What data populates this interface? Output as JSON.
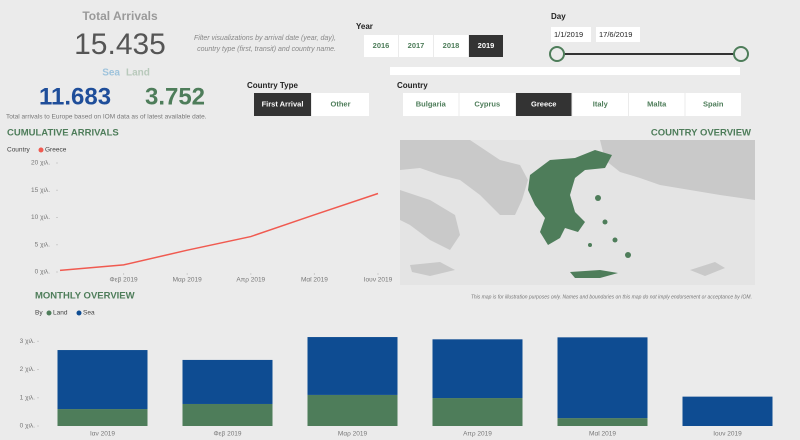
{
  "kpi": {
    "title": "Total Arrivals",
    "total": "15.435",
    "sea_label": "Sea",
    "land_label": "Land",
    "sea": "11.683",
    "land": "3.752",
    "note": "Total arrivals to Europe based on IOM data as of latest available date."
  },
  "filter_note": [
    "Filter visualizations by arrival date (year, day),",
    "country type (first, transit) and country name."
  ],
  "year": {
    "label": "Year",
    "options": [
      "2016",
      "2017",
      "2018",
      "2019"
    ],
    "selected": 3
  },
  "day": {
    "label": "Day",
    "from": "1/1/2019",
    "to": "17/6/2019"
  },
  "country_type": {
    "label": "Country Type",
    "options": [
      "First Arrival",
      "Other"
    ],
    "selected": 0
  },
  "country": {
    "label": "Country",
    "options": [
      "Bulgaria",
      "Cyprus",
      "Greece",
      "Italy",
      "Malta",
      "Spain"
    ],
    "selected": 2
  },
  "map": {
    "title": "COUNTRY OVERVIEW",
    "note": "This map is for illustration purposes only. Names and boundaries on this map do not imply endorsement or acceptance by IOM."
  },
  "chart_data": [
    {
      "type": "line",
      "title": "CUMULATIVE ARRIVALS",
      "legend_title": "Country",
      "x": [
        "2019-01",
        "2019-02",
        "2019-03",
        "2019-04",
        "2019-05",
        "2019-06"
      ],
      "series": [
        {
          "name": "Greece",
          "color": "#f05a50",
          "values": [
            300,
            1300,
            4000,
            6500,
            10500,
            14400
          ]
        }
      ],
      "xlim": [
        "2019-01",
        "2019-06"
      ],
      "xticks": [
        {
          "value": "2019-02",
          "label": "Φεβ 2019"
        },
        {
          "value": "2019-03",
          "label": "Μαρ 2019"
        },
        {
          "value": "2019-04",
          "label": "Απρ 2019"
        },
        {
          "value": "2019-05",
          "label": "Μαϊ 2019"
        },
        {
          "value": "2019-06",
          "label": "Ιουν 2019"
        }
      ],
      "ylim": [
        0,
        20000
      ],
      "yticks": [
        {
          "value": 0,
          "label": "0 χιλ."
        },
        {
          "value": 5000,
          "label": "5 χιλ."
        },
        {
          "value": 10000,
          "label": "10 χιλ."
        },
        {
          "value": 15000,
          "label": "15 χιλ."
        },
        {
          "value": 20000,
          "label": "20 χιλ."
        }
      ]
    },
    {
      "type": "stacked_bar",
      "title": "MONTHLY OVERVIEW",
      "legend_title": "By",
      "categories": [
        "Ιαν 2019",
        "Φεβ 2019",
        "Μαρ 2019",
        "Απρ 2019",
        "Μαϊ 2019",
        "Ιουν 2019"
      ],
      "series": [
        {
          "name": "Land",
          "color": "#4e7d5a",
          "values": [
            600,
            780,
            1100,
            990,
            280,
            0
          ]
        },
        {
          "name": "Sea",
          "color": "#0e4c92",
          "values": [
            2090,
            1560,
            2050,
            2080,
            2860,
            1040
          ]
        }
      ],
      "ylim": [
        0,
        3400
      ],
      "yticks": [
        {
          "value": 0,
          "label": "0 χιλ."
        },
        {
          "value": 1000,
          "label": "1 χιλ."
        },
        {
          "value": 2000,
          "label": "2 χιλ."
        },
        {
          "value": 3000,
          "label": "3 χιλ."
        }
      ]
    }
  ]
}
